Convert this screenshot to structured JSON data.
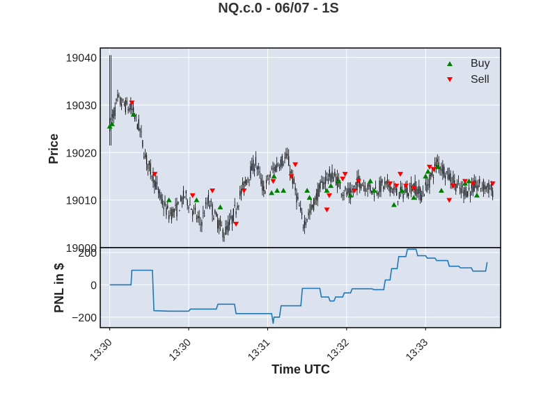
{
  "chart_data": [
    {
      "type": "candlestick",
      "title": "NQ.c.0 - 06/07 - 1S",
      "ylabel": "Price",
      "ylim": [
        19000,
        19042
      ],
      "yticks": [
        {
          "value": 19000,
          "label": "19000"
        },
        {
          "value": 19010,
          "label": "19010"
        },
        {
          "value": 19020,
          "label": "19020"
        },
        {
          "value": 19030,
          "label": "19030"
        },
        {
          "value": 19040,
          "label": "19040"
        }
      ],
      "grid": true,
      "legend_position": "top-right",
      "legend": [
        {
          "label": "Buy",
          "marker": "triangle-up",
          "color": "#008000"
        },
        {
          "label": "Sell",
          "marker": "triangle-down",
          "color": "#ff0000"
        }
      ],
      "price_path_minutes": [
        0.0,
        0.05,
        0.1,
        0.18,
        0.28,
        0.38,
        0.45,
        0.55,
        0.65,
        0.75,
        0.85,
        0.95,
        1.05,
        1.15,
        1.25,
        1.35,
        1.45,
        1.55,
        1.65,
        1.75,
        1.85,
        1.95,
        2.05,
        2.15,
        2.25,
        2.35,
        2.45,
        2.55,
        2.65,
        2.75,
        2.85,
        2.95,
        3.05,
        3.15,
        3.25,
        3.35,
        3.45,
        3.55,
        3.65,
        3.75,
        3.85,
        3.95,
        4.05,
        4.15,
        4.25,
        4.35,
        4.45,
        4.55,
        4.65,
        4.75,
        4.85,
        4.95,
        5.05
      ],
      "price_path_values": [
        19026,
        19028,
        19031,
        19030,
        19029,
        19025,
        19019,
        19015,
        19010,
        19007,
        19008,
        19011,
        19008,
        19005,
        19010,
        19006,
        19003,
        19006,
        19011,
        19015,
        19018,
        19012,
        19016,
        19018,
        19019,
        19012,
        19005,
        19008,
        19012,
        19015,
        19015,
        19012,
        19011,
        19014,
        19013,
        19012,
        19013,
        19013,
        19011,
        19012,
        19013,
        19011,
        19014,
        19018,
        19016,
        19014,
        19012,
        19012,
        19013,
        19013,
        19012,
        19011,
        19011
      ],
      "buy_markers": [
        {
          "x": 0.0,
          "y": 19025.5
        },
        {
          "x": 0.03,
          "y": 19026
        },
        {
          "x": 0.3,
          "y": 19028
        },
        {
          "x": 0.75,
          "y": 19010
        },
        {
          "x": 1.1,
          "y": 19010
        },
        {
          "x": 1.4,
          "y": 19008.5
        },
        {
          "x": 2.05,
          "y": 19011.5
        },
        {
          "x": 2.08,
          "y": 19015
        },
        {
          "x": 2.12,
          "y": 19012
        },
        {
          "x": 2.2,
          "y": 19012
        },
        {
          "x": 2.5,
          "y": 19012
        },
        {
          "x": 2.53,
          "y": 19010.5
        },
        {
          "x": 2.75,
          "y": 19012
        },
        {
          "x": 2.8,
          "y": 19013
        },
        {
          "x": 2.9,
          "y": 19014
        },
        {
          "x": 3.05,
          "y": 19011
        },
        {
          "x": 3.3,
          "y": 19014
        },
        {
          "x": 3.35,
          "y": 19012
        },
        {
          "x": 3.6,
          "y": 19009
        },
        {
          "x": 3.7,
          "y": 19012
        },
        {
          "x": 3.85,
          "y": 19010.5
        },
        {
          "x": 4.0,
          "y": 19015
        },
        {
          "x": 4.03,
          "y": 19016
        },
        {
          "x": 4.15,
          "y": 19017
        },
        {
          "x": 4.2,
          "y": 19012
        },
        {
          "x": 4.5,
          "y": 19013.5
        },
        {
          "x": 4.55,
          "y": 19014
        },
        {
          "x": 4.65,
          "y": 19011
        }
      ],
      "sell_markers": [
        {
          "x": 0.28,
          "y": 19030.5
        },
        {
          "x": 0.57,
          "y": 19015.5
        },
        {
          "x": 1.05,
          "y": 19011
        },
        {
          "x": 1.3,
          "y": 19012
        },
        {
          "x": 1.6,
          "y": 19005
        },
        {
          "x": 1.7,
          "y": 19012
        },
        {
          "x": 2.07,
          "y": 19014
        },
        {
          "x": 2.3,
          "y": 19015
        },
        {
          "x": 2.35,
          "y": 19017.5
        },
        {
          "x": 2.75,
          "y": 19008
        },
        {
          "x": 2.78,
          "y": 19011
        },
        {
          "x": 2.95,
          "y": 19014.5
        },
        {
          "x": 2.98,
          "y": 19015.5
        },
        {
          "x": 3.1,
          "y": 19012
        },
        {
          "x": 3.15,
          "y": 19014
        },
        {
          "x": 3.55,
          "y": 19013.5
        },
        {
          "x": 3.63,
          "y": 19013
        },
        {
          "x": 3.68,
          "y": 19015.5
        },
        {
          "x": 3.75,
          "y": 19013
        },
        {
          "x": 3.85,
          "y": 19012.5
        },
        {
          "x": 4.05,
          "y": 19017
        },
        {
          "x": 4.1,
          "y": 19016.5
        },
        {
          "x": 4.3,
          "y": 19010
        },
        {
          "x": 4.35,
          "y": 19013
        },
        {
          "x": 4.5,
          "y": 19014
        },
        {
          "x": 4.6,
          "y": 19013.5
        },
        {
          "x": 4.85,
          "y": 19013.5
        }
      ]
    },
    {
      "type": "line",
      "ylabel": "PNL in $",
      "xlabel": "Time UTC",
      "ylim": [
        -265,
        230
      ],
      "yticks": [
        {
          "value": -200,
          "label": "−200"
        },
        {
          "value": 0,
          "label": "0"
        },
        {
          "value": 200,
          "label": "200"
        }
      ],
      "xlim": [
        -0.12,
        4.95
      ],
      "xticks": [
        {
          "value": 0,
          "label": "13:30"
        },
        {
          "value": 1,
          "label": "13:30"
        },
        {
          "value": 2,
          "label": "13:31"
        },
        {
          "value": 3,
          "label": "13:32"
        },
        {
          "value": 4,
          "label": "13:33"
        }
      ],
      "grid": true,
      "color": "#1f77b4",
      "x": [
        0,
        0.27,
        0.28,
        0.54,
        0.56,
        0.75,
        1.0,
        1.02,
        1.35,
        1.37,
        1.58,
        1.6,
        2.05,
        2.07,
        2.08,
        2.15,
        2.17,
        2.42,
        2.44,
        2.66,
        2.68,
        2.77,
        2.79,
        2.84,
        2.86,
        2.95,
        2.97,
        3.05,
        3.07,
        3.32,
        3.35,
        3.47,
        3.49,
        3.55,
        3.57,
        3.64,
        3.66,
        3.75,
        3.77,
        3.88,
        3.9,
        4.0,
        4.02,
        4.12,
        4.14,
        4.28,
        4.3,
        4.42,
        4.44,
        4.58,
        4.6,
        4.76,
        4.78
      ],
      "y": [
        0,
        0,
        90,
        90,
        -160,
        -163,
        -163,
        -150,
        -150,
        -120,
        -120,
        -178,
        -178,
        -240,
        -200,
        -200,
        -130,
        -130,
        -22,
        -22,
        -75,
        -75,
        -100,
        -100,
        -75,
        -75,
        -50,
        -50,
        -25,
        -25,
        -30,
        -30,
        30,
        30,
        100,
        100,
        175,
        175,
        220,
        220,
        180,
        180,
        165,
        165,
        150,
        150,
        115,
        115,
        105,
        105,
        85,
        85,
        140
      ]
    }
  ]
}
